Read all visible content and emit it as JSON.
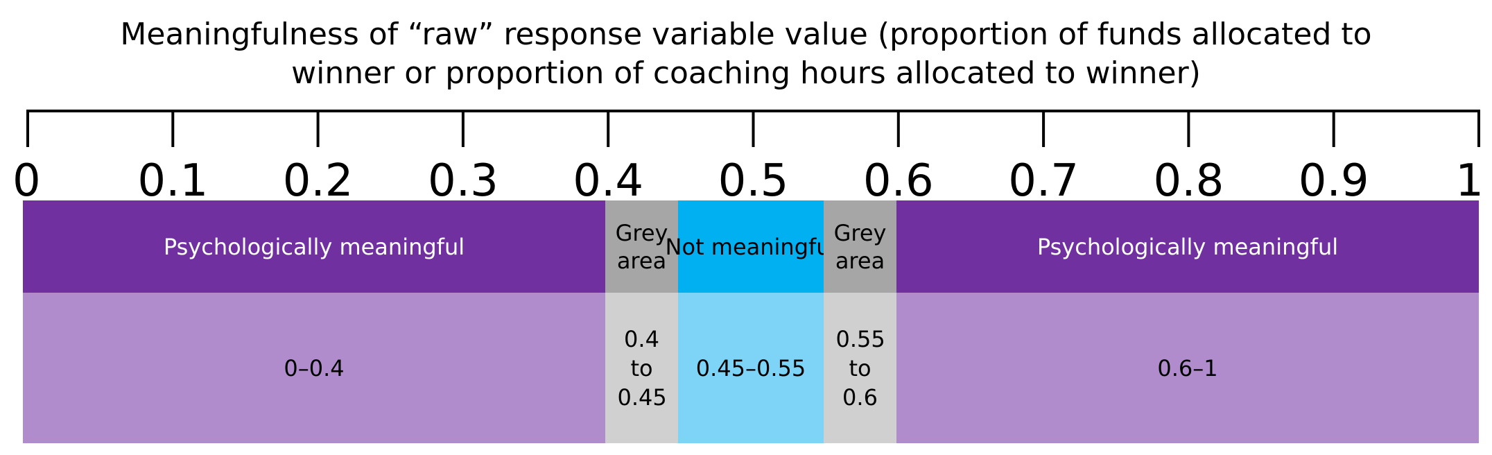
{
  "title": {
    "line1": "Meaningfulness of “raw” response variable value (proportion of funds allocated to",
    "line2": "winner or proportion of coaching hours allocated to winner)"
  },
  "scale": {
    "min": 0,
    "max": 1,
    "ticks": [
      "0",
      "0.1",
      "0.2",
      "0.3",
      "0.4",
      "0.5",
      "0.6",
      "0.7",
      "0.8",
      "0.9",
      "1"
    ]
  },
  "zones": [
    {
      "start": 0,
      "end": 0.4,
      "label": "Psychologically meaningful",
      "range": "0–0.4",
      "head_color": "#7030a0",
      "body_color": "#b08ccc",
      "head_text_color": "#ffffff"
    },
    {
      "start": 0.4,
      "end": 0.45,
      "label": "Grey area",
      "range": "0.4 to 0.45",
      "head_color": "#a6a6a6",
      "body_color": "#d0d0d0",
      "head_text_color": "#000000"
    },
    {
      "start": 0.45,
      "end": 0.55,
      "label": "Not meaningful",
      "range": "0.45–0.55",
      "head_color": "#00b0f0",
      "body_color": "#7dd4f7",
      "head_text_color": "#000000"
    },
    {
      "start": 0.55,
      "end": 0.6,
      "label": "Grey area",
      "range": "0.55 to 0.6",
      "head_color": "#a6a6a6",
      "body_color": "#d0d0d0",
      "head_text_color": "#000000"
    },
    {
      "start": 0.6,
      "end": 1,
      "label": "Psychologically meaningful",
      "range": "0.6–1",
      "head_color": "#7030a0",
      "body_color": "#b08ccc",
      "head_text_color": "#ffffff"
    }
  ]
}
